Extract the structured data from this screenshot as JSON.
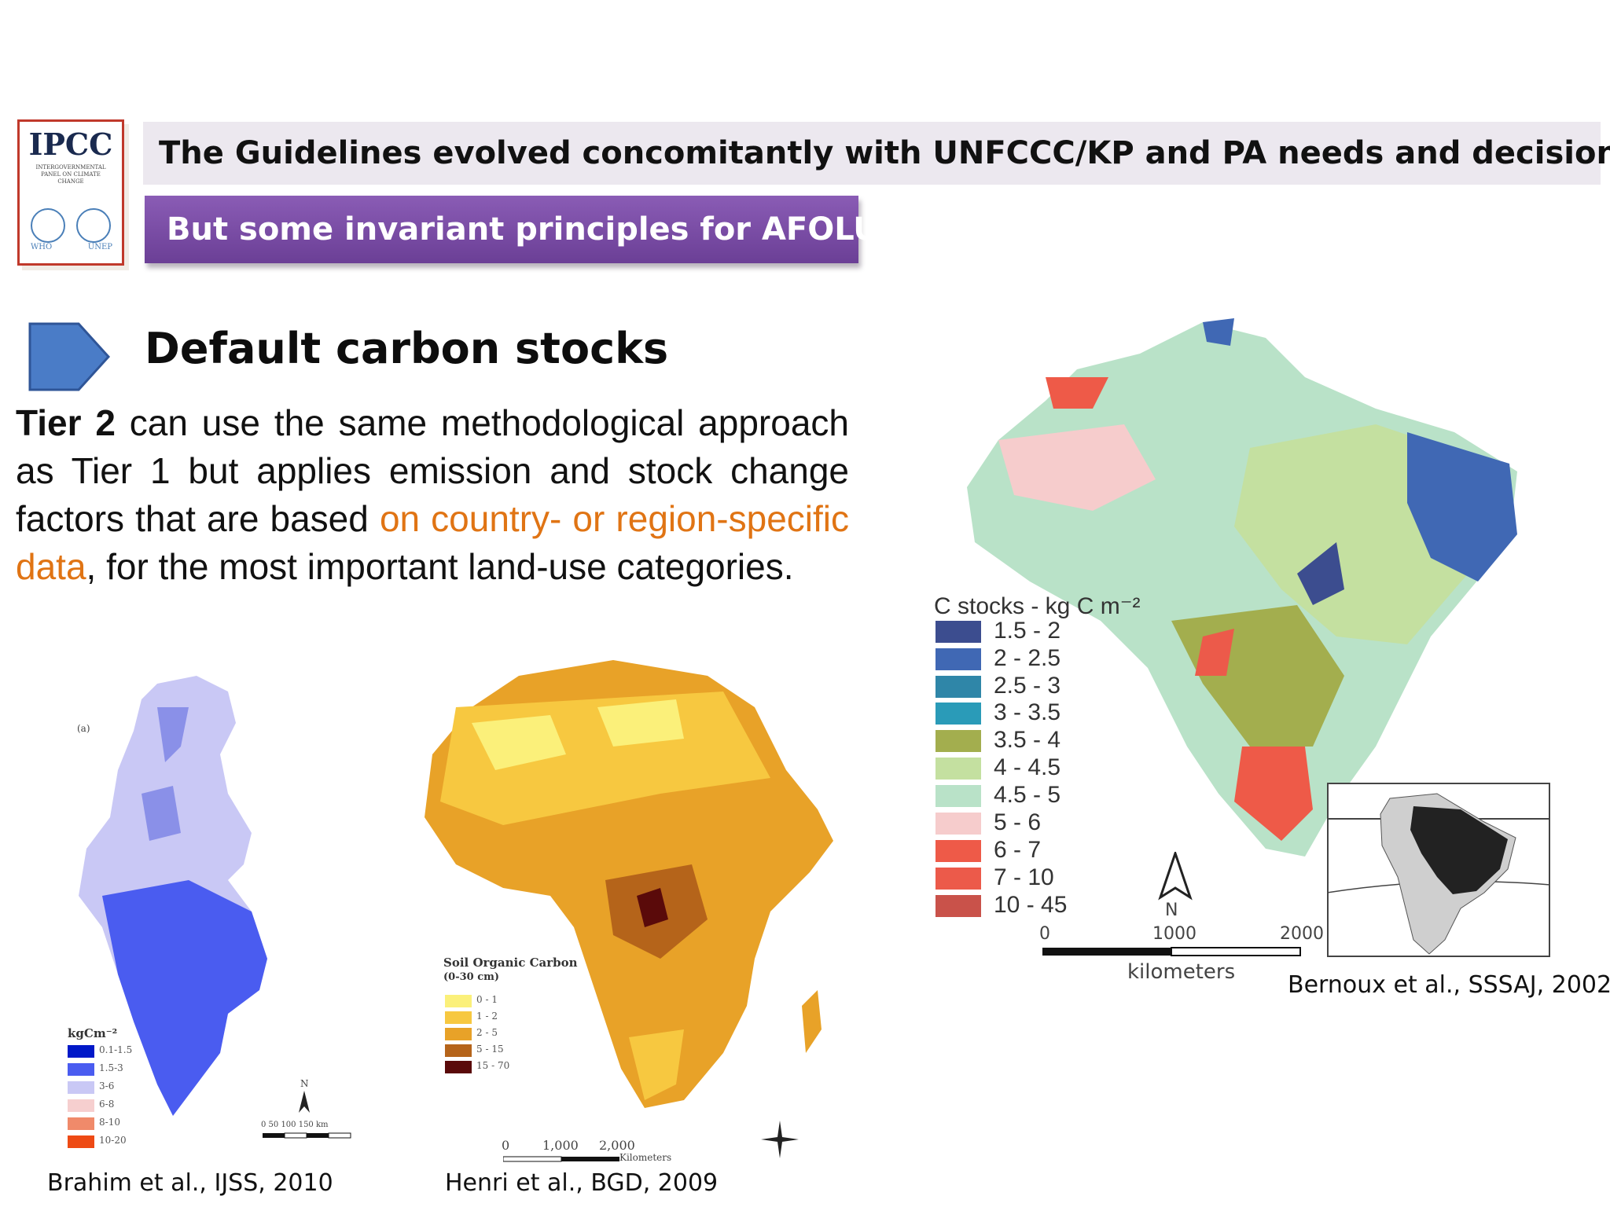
{
  "header": {
    "logo_text": "IPCC",
    "logo_subtext": "INTERGOVERNMENTAL PANEL ON CLIMATE CHANGE",
    "logo_left_caption": "WHO",
    "logo_right_caption": "UNEP",
    "title": "The Guidelines evolved concomitantly with UNFCCC/KP and PA needs and decisions",
    "subtitle": "But some invariant principles for AFOLU"
  },
  "section": {
    "heading": "Default carbon stocks",
    "body_strong": "Tier 2",
    "body_part1": " can use the same methodological approach as Tier 1 but applies emission and stock change factors that are based ",
    "body_highlight": "on country- or region-specific data",
    "body_part2": ", for the most important land-use categories."
  },
  "brazil_map": {
    "legend_title": "C stocks - kg C m⁻²",
    "legend": [
      {
        "label": "1.5 - 2",
        "color": "#3c4d8f"
      },
      {
        "label": "2 - 2.5",
        "color": "#4068b4"
      },
      {
        "label": "2.5 - 3",
        "color": "#2f86a8"
      },
      {
        "label": "3 - 3.5",
        "color": "#2a9bb8"
      },
      {
        "label": "3.5 - 4",
        "color": "#a3ae4e"
      },
      {
        "label": "4 - 4.5",
        "color": "#c4e0a0"
      },
      {
        "label": "4.5 - 5",
        "color": "#b9e2c8"
      },
      {
        "label": "5 - 6",
        "color": "#f6cccc"
      },
      {
        "label": "6 - 7",
        "color": "#ee5a48"
      },
      {
        "label": "7 - 10",
        "color": "#ec5a4a"
      },
      {
        "label": "10 - 45",
        "color": "#c9524a"
      }
    ],
    "north": "N",
    "scale_ticks": [
      "0",
      "1000",
      "2000"
    ],
    "scale_unit": "kilometers",
    "citation": "Bernoux et al., SSSAJ, 2002"
  },
  "tunisia_map": {
    "panel_label": "(a)",
    "legend_title": "kgCm⁻²",
    "legend": [
      {
        "label": "0.1-1.5",
        "color": "#0018c8"
      },
      {
        "label": "1.5-3",
        "color": "#4a5cf0"
      },
      {
        "label": "3-6",
        "color": "#c9c8f5"
      },
      {
        "label": "6-8",
        "color": "#f6cfcf"
      },
      {
        "label": "8-10",
        "color": "#f08a6a"
      },
      {
        "label": "10-20",
        "color": "#ee4a14"
      }
    ],
    "north": "N",
    "scale_text": "0   50  100  150 km",
    "citation": "Brahim et al., IJSS, 2010"
  },
  "africa_map": {
    "legend_title": "Soil Organic Carbon",
    "legend_subtitle": "(0-30 cm)",
    "legend": [
      {
        "label": "0 - 1",
        "color": "#fbf07a"
      },
      {
        "label": "1 - 2",
        "color": "#f7c840"
      },
      {
        "label": "2 - 5",
        "color": "#e8a228"
      },
      {
        "label": "5 - 15",
        "color": "#b5641a"
      },
      {
        "label": "15 - 70",
        "color": "#5a0a0a"
      }
    ],
    "scale_ticks": [
      "0",
      "1,000",
      "2,000"
    ],
    "scale_unit": "Kilometers",
    "citation": "Henri et al., BGD, 2009"
  }
}
